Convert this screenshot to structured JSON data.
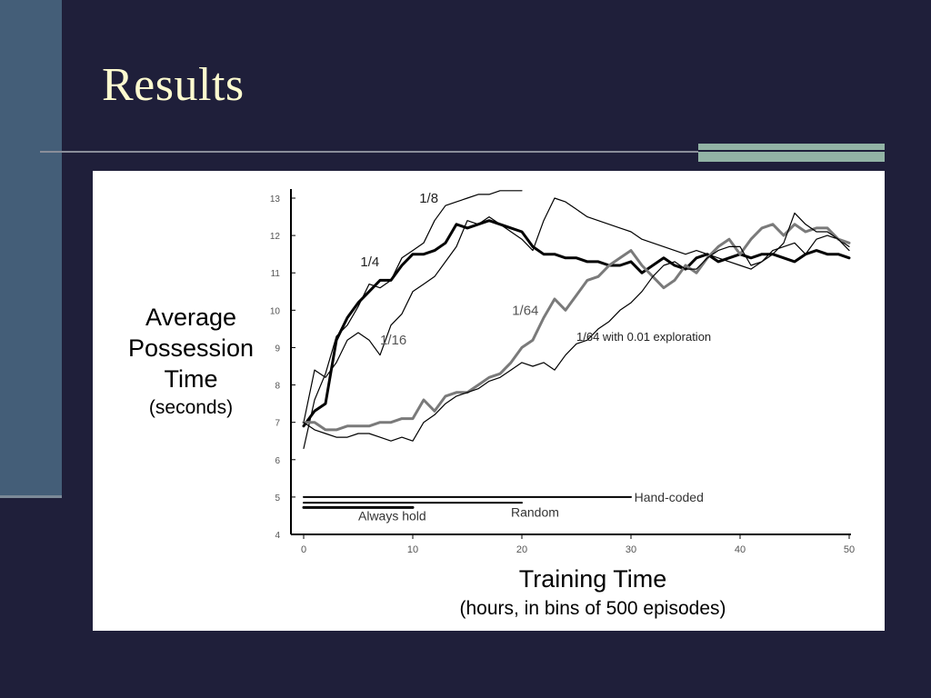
{
  "slide": {
    "title": "Results"
  },
  "colors": {
    "background": "#1f1f3a",
    "side_bar": "#445e78",
    "title_text": "#fdfbcf",
    "accent_bar": "#92b3a5",
    "panel": "#ffffff",
    "series_black": "#000000",
    "series_gray": "#7a7a7a"
  },
  "chart_data": {
    "type": "line",
    "title": "",
    "ylabel_main": "Average Possession Time",
    "ylabel_unit": "(seconds)",
    "xlabel_main": "Training Time",
    "xlabel_unit": "(hours, in bins of 500 episodes)",
    "xlim": [
      0,
      50
    ],
    "ylim": [
      4,
      13
    ],
    "xticks": [
      "0",
      "10",
      "20",
      "30",
      "40",
      "50"
    ],
    "yticks": [
      "4",
      "5",
      "6",
      "7",
      "8",
      "9",
      "10",
      "11",
      "12",
      "13"
    ],
    "grid": false,
    "series": [
      {
        "name": "1/4",
        "color": "#000000",
        "width": 1.2,
        "x": [
          0,
          1,
          2,
          3,
          4,
          5,
          6,
          7,
          8,
          9,
          10,
          11,
          12,
          13,
          14,
          15,
          16,
          17,
          18,
          19,
          20
        ],
        "y": [
          6.3,
          7.6,
          8.3,
          9.3,
          9.6,
          10.1,
          10.7,
          10.6,
          10.8,
          11.4,
          11.6,
          11.8,
          12.4,
          12.8,
          12.9,
          13.0,
          13.1,
          13.1,
          13.2,
          13.2,
          13.2
        ]
      },
      {
        "name": "1/8",
        "color": "#000000",
        "width": 3,
        "x": [
          0,
          1,
          2,
          3,
          4,
          5,
          6,
          7,
          8,
          9,
          10,
          11,
          12,
          13,
          14,
          15,
          16,
          17,
          18,
          19,
          20,
          21,
          22,
          23,
          24,
          25,
          26,
          27,
          28,
          29,
          30,
          31,
          32,
          33,
          34,
          35,
          36,
          37,
          38,
          39,
          40,
          41,
          42,
          43,
          44,
          45,
          46,
          47,
          48,
          49,
          50
        ],
        "y": [
          6.9,
          7.3,
          7.5,
          9.2,
          9.8,
          10.2,
          10.5,
          10.8,
          10.8,
          11.2,
          11.5,
          11.5,
          11.6,
          11.8,
          12.3,
          12.2,
          12.3,
          12.4,
          12.3,
          12.2,
          12.1,
          11.7,
          11.5,
          11.5,
          11.4,
          11.4,
          11.3,
          11.3,
          11.2,
          11.2,
          11.3,
          11.0,
          11.2,
          11.4,
          11.2,
          11.1,
          11.4,
          11.5,
          11.3,
          11.4,
          11.5,
          11.4,
          11.5,
          11.5,
          11.4,
          11.3,
          11.5,
          11.6,
          11.5,
          11.5,
          11.4
        ]
      },
      {
        "name": "1/16",
        "color": "#000000",
        "width": 1.2,
        "x": [
          0,
          1,
          2,
          3,
          4,
          5,
          6,
          7,
          8,
          9,
          10,
          11,
          12,
          13,
          14,
          15,
          16,
          17,
          18,
          19,
          20,
          21,
          22,
          23,
          24,
          25,
          26,
          27,
          28,
          29,
          30,
          31,
          32,
          33,
          34,
          35,
          36,
          37,
          38,
          39,
          40,
          41,
          42,
          43,
          44,
          45,
          46,
          47,
          48,
          49,
          50
        ],
        "y": [
          7.0,
          8.4,
          8.2,
          8.6,
          9.2,
          9.4,
          9.2,
          8.8,
          9.6,
          9.9,
          10.5,
          10.7,
          10.9,
          11.3,
          11.7,
          12.4,
          12.3,
          12.5,
          12.3,
          12.1,
          11.9,
          11.6,
          12.4,
          13.0,
          12.9,
          12.7,
          12.5,
          12.4,
          12.3,
          12.2,
          12.1,
          11.9,
          11.8,
          11.7,
          11.6,
          11.5,
          11.6,
          11.5,
          11.4,
          11.3,
          11.2,
          11.1,
          11.3,
          11.6,
          11.7,
          11.8,
          11.5,
          11.9,
          12.0,
          11.9,
          11.7
        ]
      },
      {
        "name": "1/64",
        "color": "#7a7a7a",
        "width": 3,
        "x": [
          0,
          1,
          2,
          3,
          4,
          5,
          6,
          7,
          8,
          9,
          10,
          11,
          12,
          13,
          14,
          15,
          16,
          17,
          18,
          19,
          20,
          21,
          22,
          23,
          24,
          25,
          26,
          27,
          28,
          29,
          30,
          31,
          32,
          33,
          34,
          35,
          36,
          37,
          38,
          39,
          40,
          41,
          42,
          43,
          44,
          45,
          46,
          47,
          48,
          49,
          50
        ],
        "y": [
          7.0,
          7.0,
          6.8,
          6.8,
          6.9,
          6.9,
          6.9,
          7.0,
          7.0,
          7.1,
          7.1,
          7.6,
          7.3,
          7.7,
          7.8,
          7.8,
          8.0,
          8.2,
          8.3,
          8.6,
          9.0,
          9.2,
          9.8,
          10.3,
          10.0,
          10.4,
          10.8,
          10.9,
          11.2,
          11.4,
          11.6,
          11.2,
          10.9,
          10.6,
          10.8,
          11.2,
          11.0,
          11.4,
          11.7,
          11.9,
          11.5,
          11.9,
          12.2,
          12.3,
          12.0,
          12.3,
          12.1,
          12.2,
          12.2,
          11.9,
          11.8
        ]
      },
      {
        "name": "1/64 with 0.01 exploration",
        "color": "#000000",
        "width": 1.2,
        "x": [
          0,
          1,
          2,
          3,
          4,
          5,
          6,
          7,
          8,
          9,
          10,
          11,
          12,
          13,
          14,
          15,
          16,
          17,
          18,
          19,
          20,
          21,
          22,
          23,
          24,
          25,
          26,
          27,
          28,
          29,
          30,
          31,
          32,
          33,
          34,
          35,
          36,
          37,
          38,
          39,
          40,
          41,
          42,
          43,
          44,
          45,
          46,
          47,
          48,
          49,
          50
        ],
        "y": [
          7.0,
          6.8,
          6.7,
          6.6,
          6.6,
          6.7,
          6.7,
          6.6,
          6.5,
          6.6,
          6.5,
          7.0,
          7.2,
          7.5,
          7.7,
          7.8,
          7.9,
          8.1,
          8.2,
          8.4,
          8.6,
          8.5,
          8.6,
          8.4,
          8.8,
          9.1,
          9.2,
          9.5,
          9.7,
          10.0,
          10.2,
          10.5,
          10.9,
          11.2,
          11.3,
          11.1,
          11.1,
          11.4,
          11.6,
          11.7,
          11.7,
          11.2,
          11.3,
          11.5,
          11.8,
          12.6,
          12.3,
          12.1,
          12.1,
          11.9,
          11.6
        ]
      },
      {
        "name": "Hand-coded",
        "color": "#000000",
        "width": 2,
        "x": [
          0,
          30
        ],
        "y": [
          5.0,
          5.0
        ]
      },
      {
        "name": "Random",
        "color": "#000000",
        "width": 2,
        "x": [
          0,
          20
        ],
        "y": [
          4.85,
          4.85
        ]
      },
      {
        "name": "Always hold",
        "color": "#000000",
        "width": 3,
        "x": [
          0,
          10
        ],
        "y": [
          4.72,
          4.72
        ]
      }
    ],
    "annotations": [
      "1/4",
      "1/8",
      "1/16",
      "1/64",
      "1/64 with 0.01 exploration",
      "Hand-coded",
      "Random",
      "Always hold"
    ]
  }
}
